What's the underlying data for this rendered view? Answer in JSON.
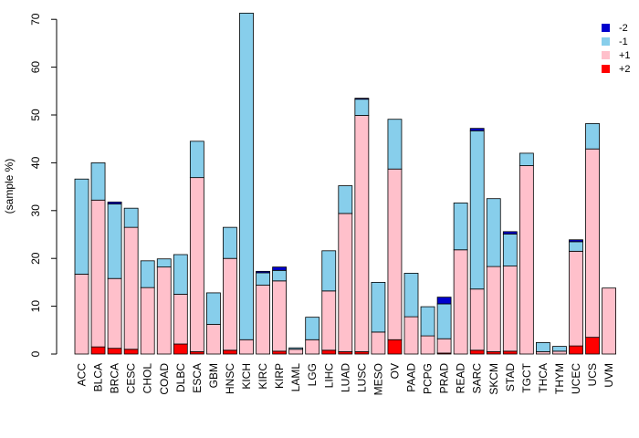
{
  "chart_data": {
    "type": "bar",
    "stacked": true,
    "title": "",
    "xlabel": "",
    "ylabel": "(sample %)",
    "ylim": [
      0,
      70
    ],
    "yticks": [
      0,
      10,
      20,
      30,
      40,
      50,
      60,
      70
    ],
    "categories": [
      "ACC",
      "BLCA",
      "BRCA",
      "CESC",
      "CHOL",
      "COAD",
      "DLBC",
      "ESCA",
      "GBM",
      "HNSC",
      "KICH",
      "KIRC",
      "KIRP",
      "LAML",
      "LGG",
      "LIHC",
      "LUAD",
      "LUSC",
      "MESO",
      "OV",
      "PAAD",
      "PCPG",
      "PRAD",
      "READ",
      "SARC",
      "SKCM",
      "STAD",
      "TGCT",
      "THCA",
      "THYM",
      "UCEC",
      "UCS",
      "UVM"
    ],
    "series": [
      {
        "name": "+2",
        "color": "#ff0000",
        "values": [
          0,
          1.5,
          1.2,
          1.0,
          0,
          0,
          2.1,
          0.5,
          0,
          0.8,
          0,
          0,
          0.6,
          0,
          0,
          0.8,
          0.5,
          0.5,
          0,
          3.0,
          0,
          0,
          0.2,
          0,
          0.8,
          0.5,
          0.6,
          0,
          0,
          0,
          1.7,
          3.5,
          0
        ]
      },
      {
        "name": "+1",
        "color": "#ffc0cb",
        "values": [
          16.7,
          30.7,
          14.6,
          25.5,
          13.9,
          18.2,
          10.4,
          36.4,
          6.2,
          19.2,
          3.0,
          14.4,
          14.7,
          1.0,
          3.0,
          12.4,
          28.9,
          49.4,
          4.6,
          35.7,
          7.8,
          3.8,
          3.0,
          21.8,
          12.8,
          17.8,
          17.8,
          39.4,
          0.5,
          0.6,
          19.8,
          39.4,
          13.8
        ]
      },
      {
        "name": "-1",
        "color": "#87ceeb",
        "values": [
          19.9,
          7.8,
          15.6,
          4.0,
          5.6,
          1.7,
          8.3,
          7.6,
          6.6,
          6.5,
          68.3,
          2.6,
          2.2,
          0.3,
          4.7,
          8.4,
          5.8,
          3.4,
          10.4,
          10.4,
          9.1,
          6.1,
          7.3,
          9.8,
          33.1,
          14.2,
          6.7,
          2.6,
          1.9,
          1.0,
          2.0,
          5.3,
          0
        ]
      },
      {
        "name": "-2",
        "color": "#0000cd",
        "values": [
          0,
          0,
          0.4,
          0,
          0,
          0,
          0,
          0,
          0,
          0,
          0,
          0.3,
          0.7,
          0,
          0,
          0,
          0,
          0.2,
          0,
          0,
          0,
          0,
          1.4,
          0,
          0.5,
          0,
          0.5,
          0,
          0,
          0,
          0.4,
          0,
          0
        ]
      }
    ],
    "legend": {
      "position": "top-right",
      "order": [
        "-2",
        "-1",
        "+1",
        "+2"
      ]
    }
  }
}
